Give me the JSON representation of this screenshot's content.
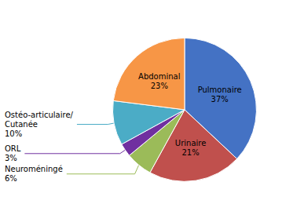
{
  "chart_data": {
    "type": "pie",
    "categories": [
      "Pulmonaire",
      "Urinaire",
      "Neuroméningé",
      "ORL",
      "Ostéo-articulaire/\nCutanée",
      "Abdominal"
    ],
    "values": [
      37,
      21,
      6,
      3,
      10,
      23
    ],
    "value_labels": [
      "37%",
      "21%",
      "6%",
      "3%",
      "10%",
      "23%"
    ],
    "colors": [
      "#4472C4",
      "#C0504D",
      "#9BBB59",
      "#7030A0",
      "#4BACC6",
      "#F79646"
    ]
  }
}
